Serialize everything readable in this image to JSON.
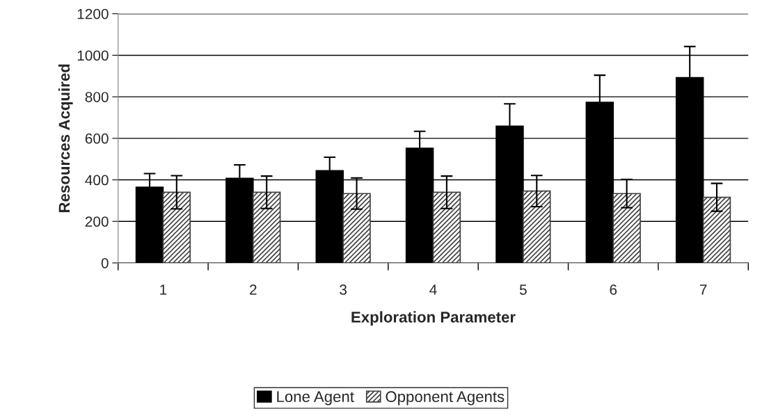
{
  "chart_data": {
    "type": "bar",
    "xlabel": "Exploration Parameter",
    "ylabel": "Resources Acquired",
    "categories": [
      "1",
      "2",
      "3",
      "4",
      "5",
      "6",
      "7"
    ],
    "series": [
      {
        "name": "Lone Agent",
        "color": "#000000",
        "values": [
          365,
          407,
          444,
          552,
          659,
          773,
          892
        ],
        "errors": [
          65,
          65,
          65,
          82,
          107,
          131,
          150
        ]
      },
      {
        "name": "Opponent Agents",
        "color": "#404040",
        "values": [
          340,
          340,
          334,
          340,
          346,
          334,
          316
        ],
        "errors": [
          80,
          78,
          75,
          78,
          75,
          68,
          67
        ]
      }
    ],
    "ylim": [
      0,
      1200
    ],
    "yticks": [
      0,
      200,
      400,
      600,
      800,
      1000,
      1200
    ],
    "grid": "y",
    "legend": "bottom"
  }
}
